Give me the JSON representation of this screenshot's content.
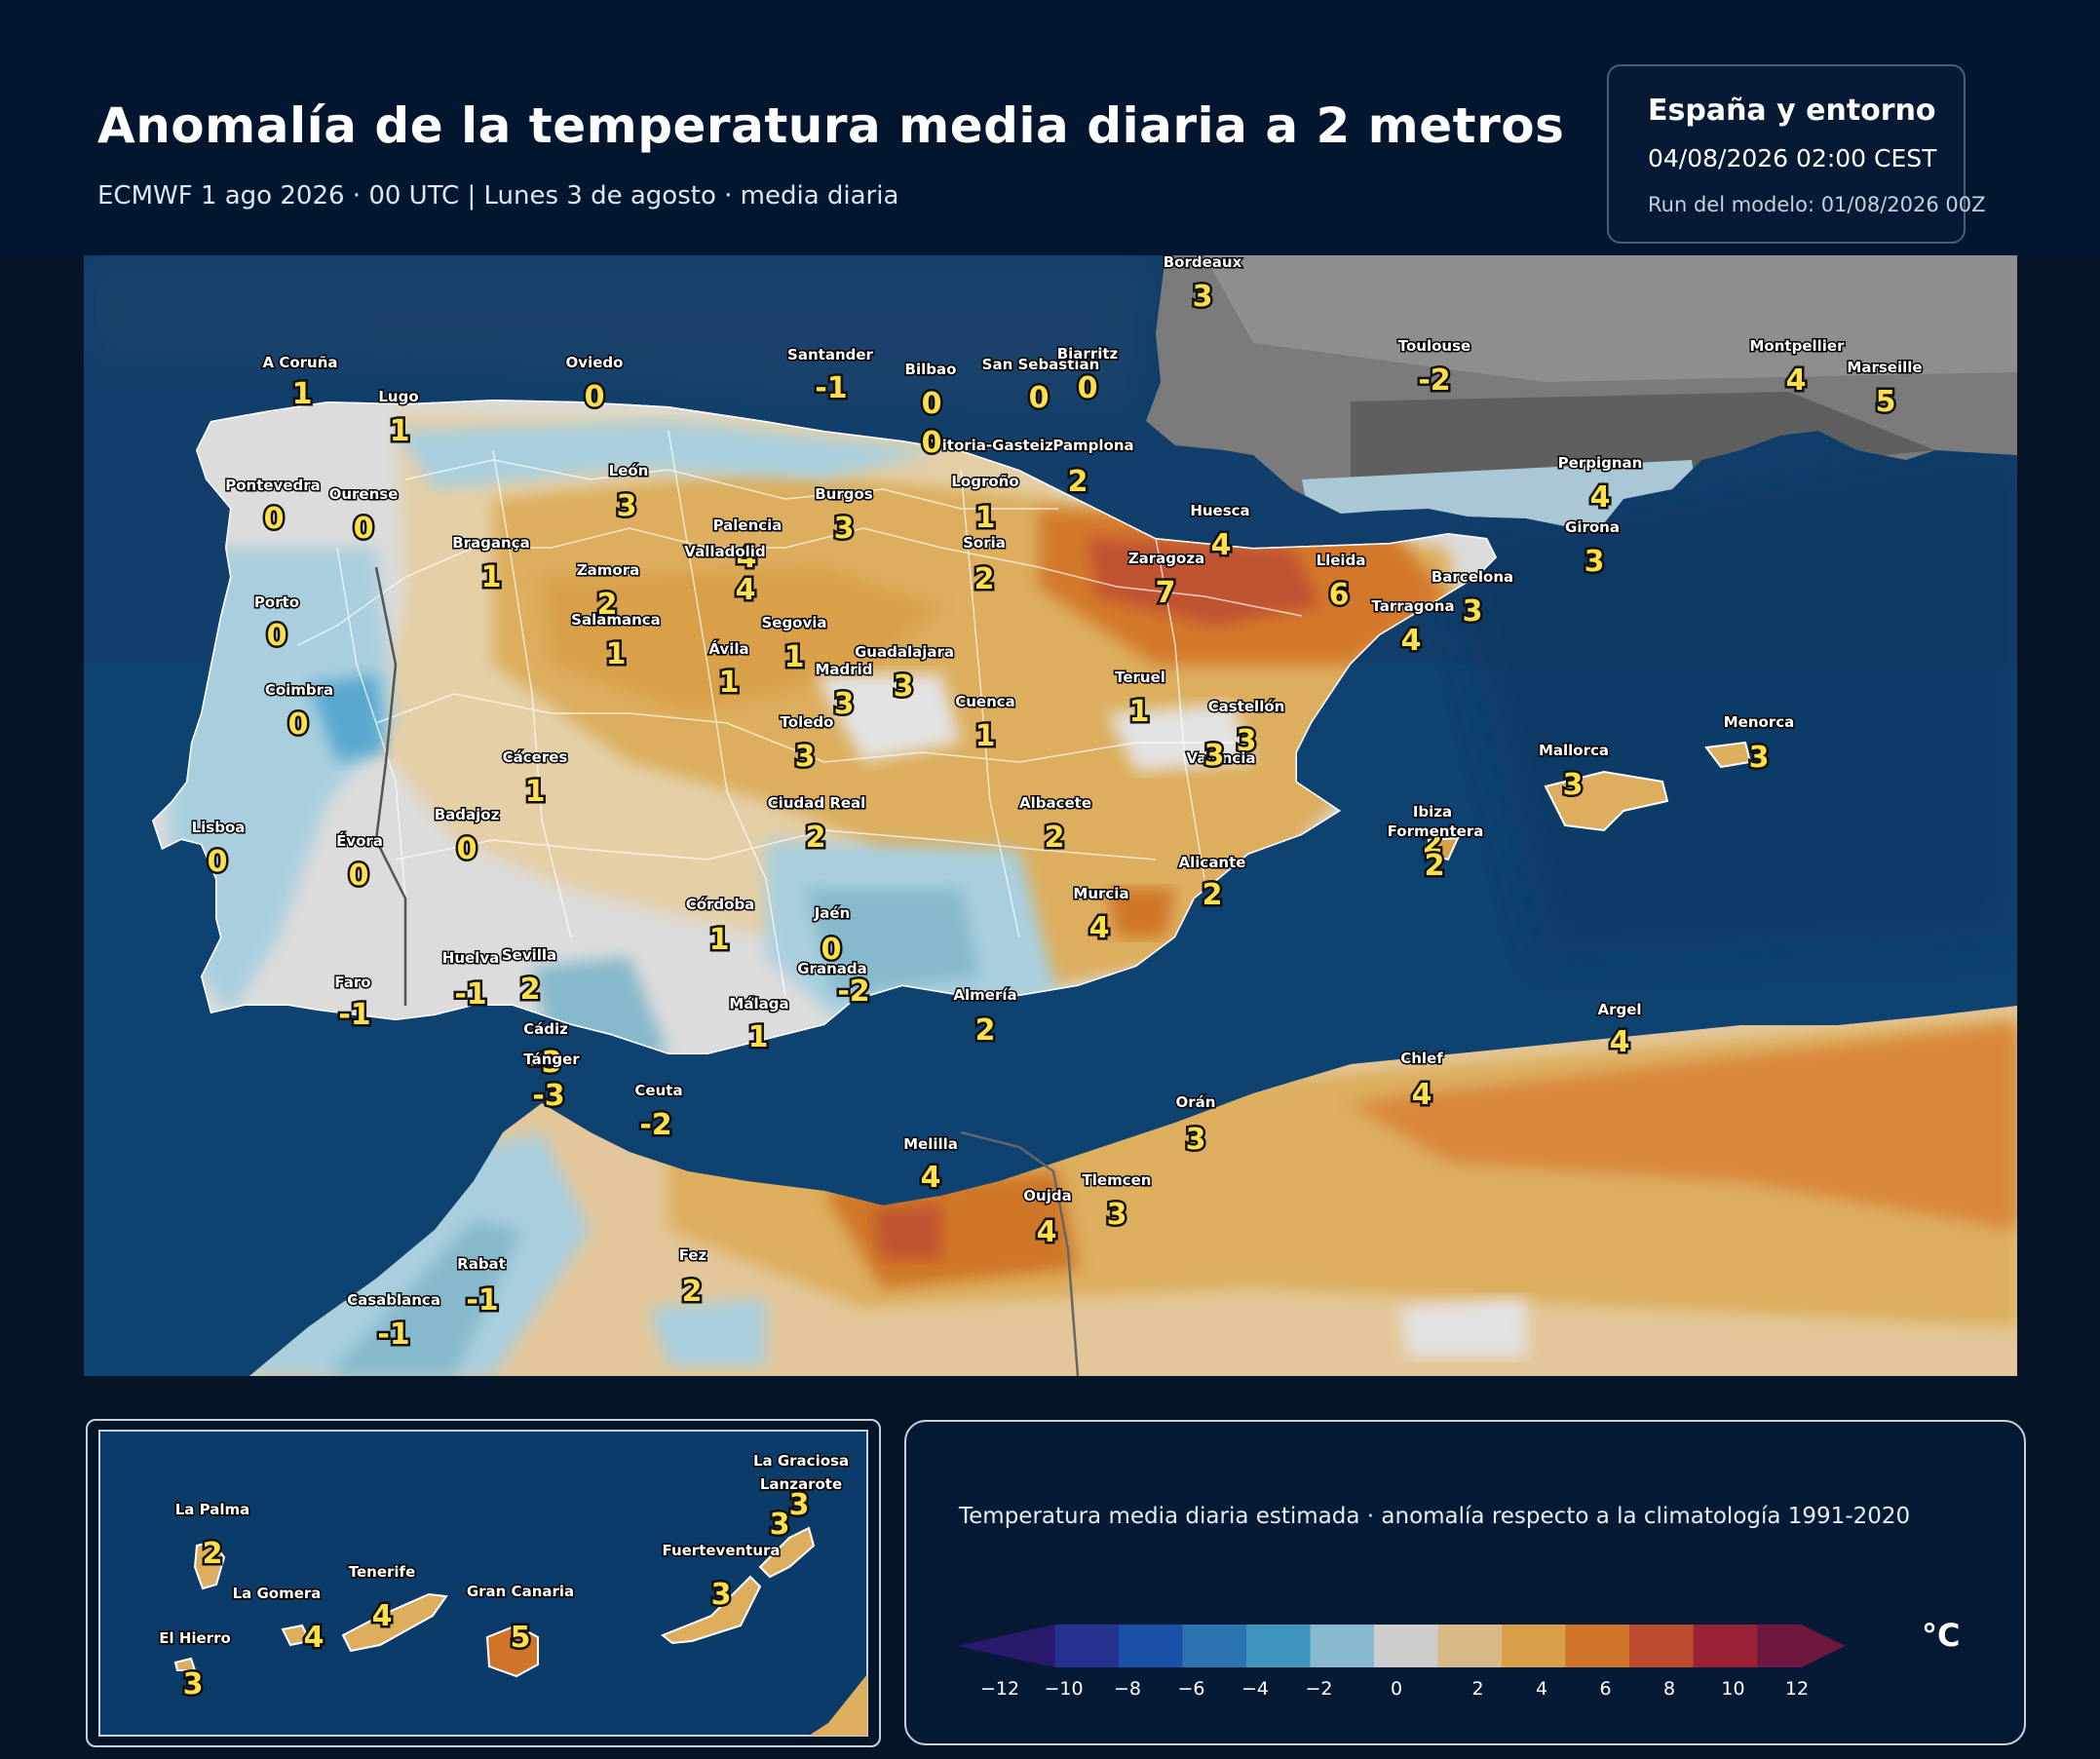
{
  "header": {
    "title": "Anomalía de la temperatura media diaria a 2 metros",
    "subtitle": "ECMWF 1 ago 2026 · 00 UTC  |  Lunes 3 de agosto · media diaria"
  },
  "info": {
    "region": "España y entorno",
    "valid": "04/08/2026  02:00 CEST",
    "run": "Run del modelo: 01/08/2026 00Z"
  },
  "map_labels": [
    {
      "name": "Bordeaux",
      "value": "3"
    },
    {
      "name": "A Coruña",
      "value": "1"
    },
    {
      "name": "Lugo",
      "value": "1"
    },
    {
      "name": "Oviedo",
      "value": "0"
    },
    {
      "name": "Santander",
      "value": "-1"
    },
    {
      "name": "Bilbao",
      "value": "0"
    },
    {
      "name": "San Sebastián",
      "value": "0"
    },
    {
      "name": "Biarritz",
      "value": "0"
    },
    {
      "name": "Toulouse",
      "value": "-2"
    },
    {
      "name": "Montpellier",
      "value": "4"
    },
    {
      "name": "Marseille",
      "value": "5"
    },
    {
      "name": "Vitoria-Gasteiz",
      "value": "0"
    },
    {
      "name": "Pamplona",
      "value": "2"
    },
    {
      "name": "Pontevedra",
      "value": "0"
    },
    {
      "name": "Ourense",
      "value": "0"
    },
    {
      "name": "León",
      "value": "3"
    },
    {
      "name": "Burgos",
      "value": "3"
    },
    {
      "name": "Logroño",
      "value": "1"
    },
    {
      "name": "Perpignan",
      "value": "4"
    },
    {
      "name": "Huesca",
      "value": "4"
    },
    {
      "name": "Palencia",
      "value": "4"
    },
    {
      "name": "Girona",
      "value": "3"
    },
    {
      "name": "Bragança",
      "value": "1"
    },
    {
      "name": "Valladolid",
      "value": "4"
    },
    {
      "name": "Soria",
      "value": "2"
    },
    {
      "name": "Zaragoza",
      "value": "7"
    },
    {
      "name": "Lleida",
      "value": "6"
    },
    {
      "name": "Zamora",
      "value": "2"
    },
    {
      "name": "Barcelona",
      "value": "3"
    },
    {
      "name": "Porto",
      "value": "0"
    },
    {
      "name": "Tarragona",
      "value": "4"
    },
    {
      "name": "Salamanca",
      "value": "1"
    },
    {
      "name": "Segovia",
      "value": "1"
    },
    {
      "name": "Ávila",
      "value": "1"
    },
    {
      "name": "Guadalajara",
      "value": "3"
    },
    {
      "name": "Madrid",
      "value": "3"
    },
    {
      "name": "Teruel",
      "value": "1"
    },
    {
      "name": "Coimbra",
      "value": "0"
    },
    {
      "name": "Cuenca",
      "value": "1"
    },
    {
      "name": "Castellón",
      "value": "3"
    },
    {
      "name": "Toledo",
      "value": "3"
    },
    {
      "name": "Menorca",
      "value": "3"
    },
    {
      "name": "Mallorca",
      "value": "3"
    },
    {
      "name": "Cáceres",
      "value": "1"
    },
    {
      "name": "Valencia",
      "value": "3"
    },
    {
      "name": "Ciudad Real",
      "value": "2"
    },
    {
      "name": "Albacete",
      "value": "2"
    },
    {
      "name": "Ibiza",
      "value": "2"
    },
    {
      "name": "Badajoz",
      "value": "0"
    },
    {
      "name": "Formentera",
      "value": "2"
    },
    {
      "name": "Lisboa",
      "value": "0"
    },
    {
      "name": "Évora",
      "value": "0"
    },
    {
      "name": "Alicante",
      "value": "2"
    },
    {
      "name": "Murcia",
      "value": "4"
    },
    {
      "name": "Córdoba",
      "value": "1"
    },
    {
      "name": "Jaén",
      "value": "0"
    },
    {
      "name": "Huelva",
      "value": "-1"
    },
    {
      "name": "Sevilla",
      "value": "2"
    },
    {
      "name": "Granada",
      "value": "-2"
    },
    {
      "name": "Faro",
      "value": "-1"
    },
    {
      "name": "Almería",
      "value": "2"
    },
    {
      "name": "Málaga",
      "value": "1"
    },
    {
      "name": "Argel",
      "value": "4"
    },
    {
      "name": "Cádiz",
      "value": "-3"
    },
    {
      "name": "Chlef",
      "value": "4"
    },
    {
      "name": "Tánger",
      "value": "-3"
    },
    {
      "name": "Ceuta",
      "value": "-2"
    },
    {
      "name": "Orán",
      "value": "3"
    },
    {
      "name": "Melilla",
      "value": "4"
    },
    {
      "name": "Tlemcen",
      "value": "3"
    },
    {
      "name": "Oujda",
      "value": "4"
    },
    {
      "name": "Rabat",
      "value": "-1"
    },
    {
      "name": "Fez",
      "value": "2"
    },
    {
      "name": "Casablanca",
      "value": "-1"
    }
  ],
  "canary_labels": [
    {
      "name": "La Graciosa",
      "value": "3"
    },
    {
      "name": "Lanzarote",
      "value": "3"
    },
    {
      "name": "La Palma",
      "value": "2"
    },
    {
      "name": "Fuerteventura",
      "value": "3"
    },
    {
      "name": "Tenerife",
      "value": "4"
    },
    {
      "name": "La Gomera",
      "value": "4"
    },
    {
      "name": "Gran Canaria",
      "value": "5"
    },
    {
      "name": "El Hierro",
      "value": "3"
    }
  ],
  "legend": {
    "title": "Temperatura media diaria estimada · anomalía respecto a la climatología 1991-2020",
    "unit": "°C",
    "ticks": [
      "−12",
      "−10",
      "−8",
      "−6",
      "−4",
      "−2",
      "0",
      "2",
      "4",
      "6",
      "8",
      "10",
      "12"
    ],
    "colors": [
      "#2a1a6e",
      "#23338f",
      "#1a50a8",
      "#2b74b0",
      "#3d96bd",
      "#86b9cb",
      "#cdcdcd",
      "#d8ba88",
      "#d9a04a",
      "#cf7428",
      "#bc4a2e",
      "#9b2236",
      "#6e1840"
    ]
  }
}
